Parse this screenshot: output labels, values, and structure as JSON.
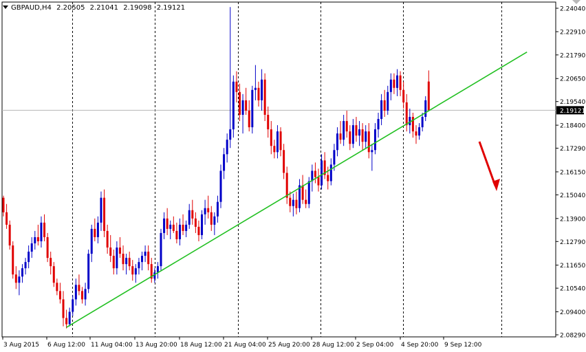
{
  "header": {
    "symbol_timeframe": "GBPAUD,H4",
    "open": "2.20505",
    "high": "2.21041",
    "low": "2.19098",
    "close": "2.19121"
  },
  "colors": {
    "bull": "#0000c8",
    "bear": "#e00000",
    "trendline": "#22c022",
    "arrow": "#e00000",
    "grid": "#000000",
    "price_line": "#b4b4b4"
  },
  "chart_data": {
    "type": "candlestick",
    "title": "GBPAUD,H4",
    "ohlc_header": {
      "open": 2.20505,
      "high": 2.21041,
      "low": 2.19098,
      "close": 2.19121
    },
    "y_ticks": [
      "2.24040",
      "2.22910",
      "2.21790",
      "2.20650",
      "2.19540",
      "2.18400",
      "2.17290",
      "2.16150",
      "2.15040",
      "2.13900",
      "2.12790",
      "2.11650",
      "2.10540",
      "2.09400",
      "2.08290"
    ],
    "y_range": [
      2.0829,
      2.2404
    ],
    "current_price_label": "2.19121",
    "x_ticks": [
      "3 Aug 2015",
      "6 Aug 12:00",
      "11 Aug 04:00",
      "13 Aug 20:00",
      "18 Aug 12:00",
      "21 Aug 04:00",
      "25 Aug 20:00",
      "28 Aug 12:00",
      "2 Sep 04:00",
      "4 Sep 20:00",
      "9 Sep 12:00"
    ],
    "grid": "vertical dashed separators only",
    "candles": [
      [
        2.149,
        2.15,
        2.14,
        2.142
      ],
      [
        2.142,
        2.146,
        2.134,
        2.136
      ],
      [
        2.136,
        2.138,
        2.124,
        2.126
      ],
      [
        2.126,
        2.128,
        2.11,
        2.112
      ],
      [
        2.112,
        2.116,
        2.105,
        2.108
      ],
      [
        2.108,
        2.114,
        2.102,
        2.111
      ],
      [
        2.111,
        2.117,
        2.108,
        2.115
      ],
      [
        2.115,
        2.12,
        2.112,
        2.118
      ],
      [
        2.118,
        2.126,
        2.115,
        2.123
      ],
      [
        2.123,
        2.13,
        2.12,
        2.127
      ],
      [
        2.127,
        2.133,
        2.124,
        2.13
      ],
      [
        2.13,
        2.136,
        2.126,
        2.128
      ],
      [
        2.128,
        2.14,
        2.125,
        2.137
      ],
      [
        2.137,
        2.141,
        2.128,
        2.13
      ],
      [
        2.13,
        2.132,
        2.118,
        2.12
      ],
      [
        2.12,
        2.123,
        2.112,
        2.116
      ],
      [
        2.116,
        2.118,
        2.106,
        2.108
      ],
      [
        2.108,
        2.11,
        2.102,
        2.104
      ],
      [
        2.104,
        2.108,
        2.098,
        2.1
      ],
      [
        2.1,
        2.104,
        2.087,
        2.091
      ],
      [
        2.091,
        2.095,
        2.086,
        2.088
      ],
      [
        2.088,
        2.096,
        2.087,
        2.094
      ],
      [
        2.094,
        2.102,
        2.092,
        2.1
      ],
      [
        2.1,
        2.11,
        2.097,
        2.107
      ],
      [
        2.107,
        2.112,
        2.102,
        2.104
      ],
      [
        2.104,
        2.106,
        2.098,
        2.1
      ],
      [
        2.1,
        2.108,
        2.097,
        2.105
      ],
      [
        2.105,
        2.124,
        2.103,
        2.122
      ],
      [
        2.122,
        2.136,
        2.118,
        2.134
      ],
      [
        2.134,
        2.139,
        2.128,
        2.13
      ],
      [
        2.13,
        2.14,
        2.127,
        2.137
      ],
      [
        2.137,
        2.152,
        2.133,
        2.149
      ],
      [
        2.149,
        2.153,
        2.13,
        2.133
      ],
      [
        2.133,
        2.136,
        2.122,
        2.125
      ],
      [
        2.125,
        2.131,
        2.118,
        2.121
      ],
      [
        2.121,
        2.124,
        2.112,
        2.115
      ],
      [
        2.115,
        2.128,
        2.112,
        2.125
      ],
      [
        2.125,
        2.13,
        2.12,
        2.122
      ],
      [
        2.122,
        2.126,
        2.114,
        2.117
      ],
      [
        2.117,
        2.122,
        2.112,
        2.12
      ],
      [
        2.12,
        2.123,
        2.114,
        2.116
      ],
      [
        2.116,
        2.119,
        2.109,
        2.112
      ],
      [
        2.112,
        2.117,
        2.108,
        2.115
      ],
      [
        2.115,
        2.12,
        2.112,
        2.118
      ],
      [
        2.118,
        2.123,
        2.114,
        2.121
      ],
      [
        2.121,
        2.126,
        2.118,
        2.123
      ],
      [
        2.123,
        2.126,
        2.114,
        2.117
      ],
      [
        2.117,
        2.12,
        2.108,
        2.11
      ],
      [
        2.11,
        2.115,
        2.108,
        2.113
      ],
      [
        2.113,
        2.118,
        2.11,
        2.116
      ],
      [
        2.116,
        2.134,
        2.114,
        2.132
      ],
      [
        2.132,
        2.142,
        2.129,
        2.139
      ],
      [
        2.139,
        2.144,
        2.131,
        2.134
      ],
      [
        2.134,
        2.138,
        2.129,
        2.136
      ],
      [
        2.136,
        2.14,
        2.132,
        2.133
      ],
      [
        2.133,
        2.137,
        2.127,
        2.129
      ],
      [
        2.129,
        2.139,
        2.126,
        2.136
      ],
      [
        2.136,
        2.141,
        2.131,
        2.133
      ],
      [
        2.133,
        2.138,
        2.13,
        2.136
      ],
      [
        2.136,
        2.146,
        2.134,
        2.143
      ],
      [
        2.143,
        2.148,
        2.136,
        2.139
      ],
      [
        2.139,
        2.142,
        2.132,
        2.135
      ],
      [
        2.135,
        2.138,
        2.128,
        2.131
      ],
      [
        2.131,
        2.143,
        2.129,
        2.141
      ],
      [
        2.141,
        2.148,
        2.136,
        2.144
      ],
      [
        2.144,
        2.15,
        2.139,
        2.142
      ],
      [
        2.142,
        2.145,
        2.133,
        2.136
      ],
      [
        2.136,
        2.142,
        2.131,
        2.14
      ],
      [
        2.14,
        2.15,
        2.137,
        2.147
      ],
      [
        2.147,
        2.165,
        2.144,
        2.162
      ],
      [
        2.162,
        2.173,
        2.158,
        2.17
      ],
      [
        2.17,
        2.18,
        2.166,
        2.177
      ],
      [
        2.177,
        2.241,
        2.173,
        2.182
      ],
      [
        2.182,
        2.208,
        2.178,
        2.205
      ],
      [
        2.205,
        2.21,
        2.195,
        2.2
      ],
      [
        2.2,
        2.204,
        2.186,
        2.189
      ],
      [
        2.189,
        2.199,
        2.18,
        2.196
      ],
      [
        2.196,
        2.202,
        2.189,
        2.191
      ],
      [
        2.191,
        2.196,
        2.181,
        2.183
      ],
      [
        2.183,
        2.203,
        2.18,
        2.201
      ],
      [
        2.201,
        2.213,
        2.196,
        2.202
      ],
      [
        2.202,
        2.205,
        2.193,
        2.196
      ],
      [
        2.196,
        2.211,
        2.191,
        2.206
      ],
      [
        2.206,
        2.209,
        2.186,
        2.189
      ],
      [
        2.189,
        2.193,
        2.178,
        2.182
      ],
      [
        2.182,
        2.186,
        2.17,
        2.174
      ],
      [
        2.174,
        2.177,
        2.168,
        2.171
      ],
      [
        2.171,
        2.184,
        2.168,
        2.181
      ],
      [
        2.181,
        2.183,
        2.169,
        2.172
      ],
      [
        2.172,
        2.175,
        2.158,
        2.161
      ],
      [
        2.161,
        2.164,
        2.146,
        2.149
      ],
      [
        2.149,
        2.152,
        2.142,
        2.145
      ],
      [
        2.145,
        2.151,
        2.14,
        2.148
      ],
      [
        2.148,
        2.152,
        2.141,
        2.144
      ],
      [
        2.144,
        2.158,
        2.142,
        2.155
      ],
      [
        2.155,
        2.16,
        2.146,
        2.148
      ],
      [
        2.148,
        2.153,
        2.144,
        2.146
      ],
      [
        2.146,
        2.159,
        2.144,
        2.157
      ],
      [
        2.157,
        2.165,
        2.152,
        2.162
      ],
      [
        2.162,
        2.166,
        2.156,
        2.159
      ],
      [
        2.159,
        2.163,
        2.152,
        2.155
      ],
      [
        2.155,
        2.17,
        2.153,
        2.167
      ],
      [
        2.167,
        2.171,
        2.158,
        2.16
      ],
      [
        2.16,
        2.164,
        2.153,
        2.157
      ],
      [
        2.157,
        2.168,
        2.155,
        2.165
      ],
      [
        2.165,
        2.175,
        2.162,
        2.172
      ],
      [
        2.172,
        2.183,
        2.169,
        2.18
      ],
      [
        2.18,
        2.186,
        2.175,
        2.177
      ],
      [
        2.177,
        2.189,
        2.174,
        2.186
      ],
      [
        2.186,
        2.191,
        2.178,
        2.181
      ],
      [
        2.181,
        2.184,
        2.172,
        2.175
      ],
      [
        2.175,
        2.187,
        2.173,
        2.184
      ],
      [
        2.184,
        2.188,
        2.176,
        2.179
      ],
      [
        2.179,
        2.186,
        2.174,
        2.182
      ],
      [
        2.182,
        2.185,
        2.172,
        2.176
      ],
      [
        2.176,
        2.184,
        2.173,
        2.181
      ],
      [
        2.181,
        2.185,
        2.168,
        2.171
      ],
      [
        2.171,
        2.175,
        2.162,
        2.172
      ],
      [
        2.172,
        2.185,
        2.17,
        2.182
      ],
      [
        2.182,
        2.19,
        2.178,
        2.187
      ],
      [
        2.187,
        2.199,
        2.184,
        2.196
      ],
      [
        2.196,
        2.201,
        2.188,
        2.191
      ],
      [
        2.191,
        2.203,
        2.189,
        2.2
      ],
      [
        2.2,
        2.209,
        2.196,
        2.206
      ],
      [
        2.206,
        2.209,
        2.199,
        2.202
      ],
      [
        2.202,
        2.211,
        2.198,
        2.208
      ],
      [
        2.208,
        2.21,
        2.198,
        2.201
      ],
      [
        2.201,
        2.205,
        2.192,
        2.195
      ],
      [
        2.195,
        2.199,
        2.181,
        2.184
      ],
      [
        2.184,
        2.192,
        2.18,
        2.188
      ],
      [
        2.188,
        2.19,
        2.178,
        2.181
      ],
      [
        2.181,
        2.184,
        2.175,
        2.179
      ],
      [
        2.179,
        2.185,
        2.177,
        2.183
      ],
      [
        2.183,
        2.19,
        2.181,
        2.188
      ],
      [
        2.188,
        2.198,
        2.186,
        2.196
      ],
      [
        2.20505,
        2.21041,
        2.19098,
        2.19121
      ]
    ],
    "trendline": {
      "from": {
        "candle": 20,
        "price": 2.0865
      },
      "to": {
        "candle": 140,
        "price": 2.1955
      }
    },
    "arrow": {
      "direction": "down",
      "color": "red"
    }
  }
}
